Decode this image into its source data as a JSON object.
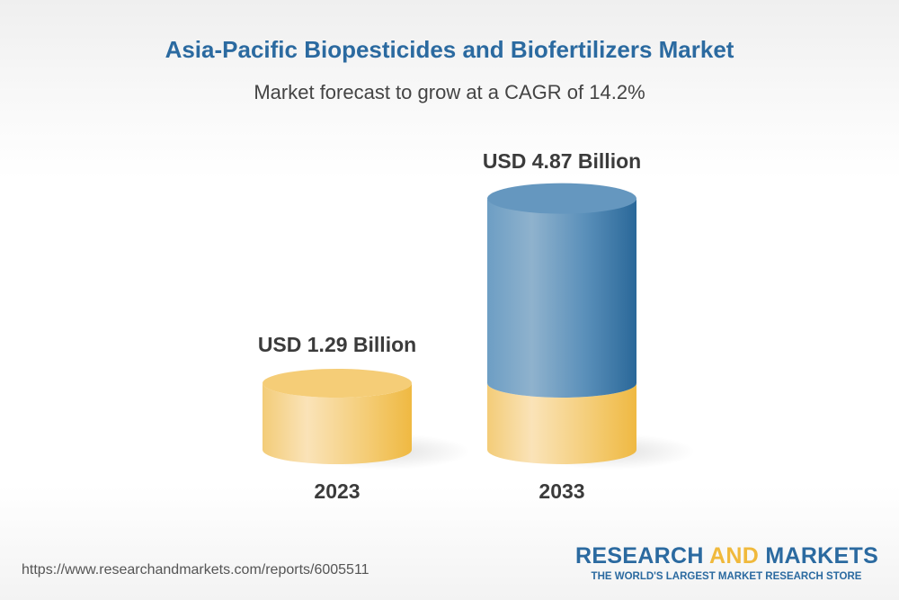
{
  "title": "Asia-Pacific Biopesticides and Biofertilizers Market",
  "subtitle": "Market forecast to grow at a CAGR of 14.2%",
  "chart_data": {
    "type": "bar",
    "style": "3d-cylinder",
    "categories": [
      "2023",
      "2033"
    ],
    "values": [
      1.29,
      4.87
    ],
    "value_labels": [
      "USD 1.29 Billion",
      "USD 4.87 Billion"
    ],
    "unit": "USD Billion",
    "colors": {
      "base": "#f2c25a",
      "growth": "#2b6aa0"
    }
  },
  "footer": {
    "url": "https://www.researchandmarkets.com/reports/6005511",
    "logo_word1": "RESEARCH ",
    "logo_word2": "AND",
    "logo_word3": " MARKETS",
    "logo_tagline": "THE WORLD'S LARGEST MARKET RESEARCH STORE"
  }
}
